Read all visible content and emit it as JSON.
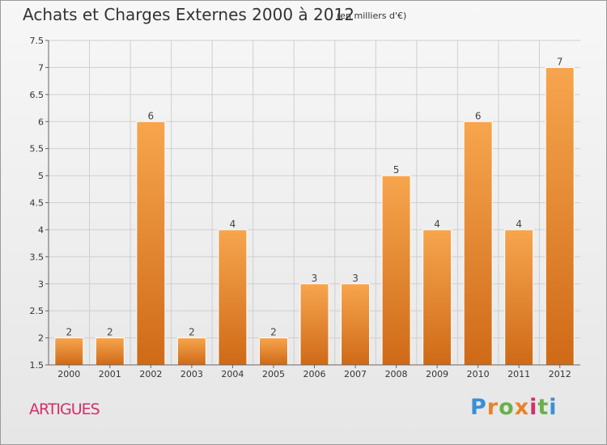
{
  "header": {
    "title": "Achats et Charges Externes 2000 à 2012",
    "unit": "(en milliers d'€)"
  },
  "footer": {
    "place": "ARTIGUES",
    "brand": [
      "P",
      "r",
      "o",
      "x",
      "i",
      "t",
      "i"
    ],
    "brand_colors": [
      "#3a8fd6",
      "#e8832a",
      "#6ab04c",
      "#e8832a",
      "#d0306a",
      "#6ab04c",
      "#3a8fd6"
    ]
  },
  "colors": {
    "bar_top": "#f7a54e",
    "bar_bottom": "#cf6a17",
    "grid": "#cfcfcf",
    "axis": "#666666",
    "title": "#333333",
    "place": "#d0306a"
  },
  "chart_data": {
    "type": "bar",
    "categories": [
      "2000",
      "2001",
      "2002",
      "2003",
      "2004",
      "2005",
      "2006",
      "2007",
      "2008",
      "2009",
      "2010",
      "2011",
      "2012"
    ],
    "values": [
      2,
      2,
      6,
      2,
      4,
      2,
      3,
      3,
      5,
      4,
      6,
      4,
      7
    ],
    "data_labels": [
      "2",
      "2",
      "6",
      "2",
      "4",
      "2",
      "3",
      "3",
      "5",
      "4",
      "6",
      "4",
      "7"
    ],
    "title": "Achats et Charges Externes 2000 à 2012",
    "xlabel": "",
    "ylabel": "",
    "ylim": [
      1.5,
      7.5
    ],
    "yticks": [
      1.5,
      2,
      2.5,
      3,
      3.5,
      4,
      4.5,
      5,
      5.5,
      6,
      6.5,
      7,
      7.5
    ],
    "ytick_labels": [
      "1.5",
      "2",
      "2.5",
      "3",
      "3.5",
      "4",
      "4.5",
      "5",
      "5.5",
      "6",
      "6.5",
      "7",
      "7.5"
    ],
    "grid": true,
    "legend": "none"
  }
}
